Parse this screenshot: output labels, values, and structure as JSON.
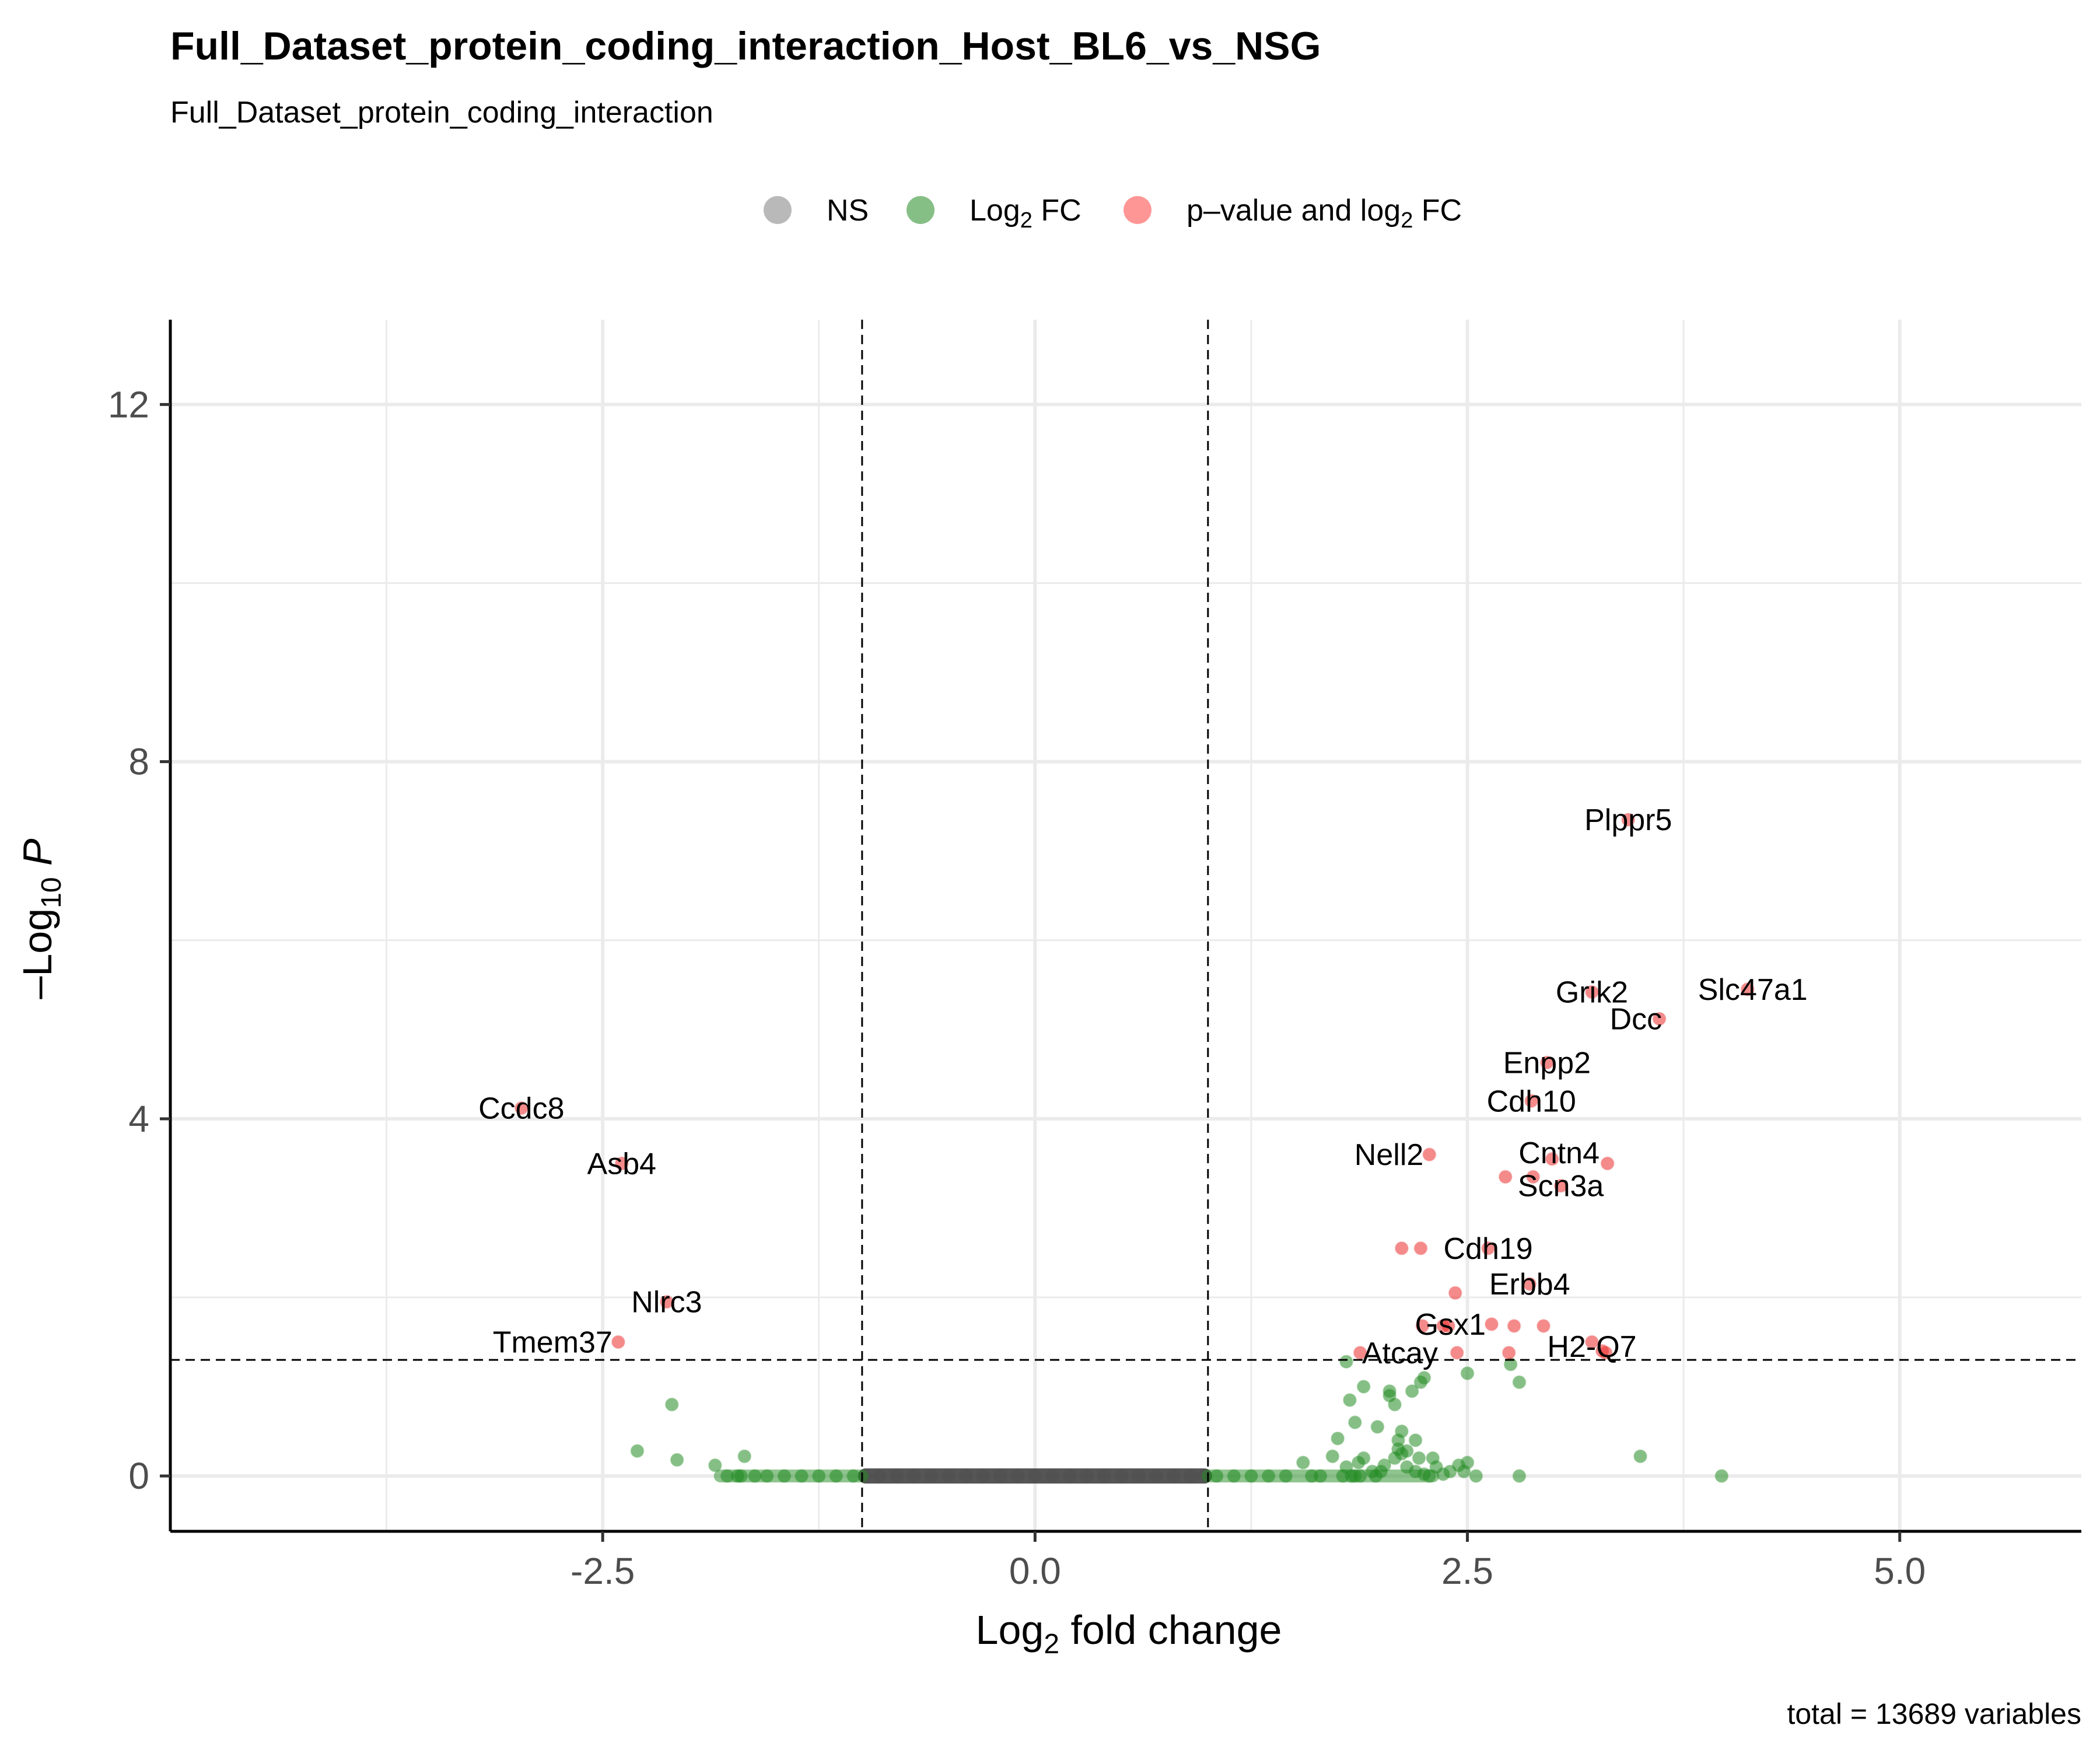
{
  "chart_data": {
    "type": "scatter",
    "title": "Full_Dataset_protein_coding_interaction_Host_BL6_vs_NSG",
    "subtitle": "Full_Dataset_protein_coding_interaction",
    "xlabel": {
      "main": "Log",
      "sub": "2",
      "rest": " fold change"
    },
    "ylabel": {
      "main": "–Log",
      "sub": "10",
      "rest": " P"
    },
    "xlim": [
      -5.0,
      6.05
    ],
    "ylim": [
      -0.62,
      12.95
    ],
    "x_ticks": [
      -2.5,
      0.0,
      2.5,
      5.0
    ],
    "x_tick_labels": [
      "-2.5",
      "0.0",
      "2.5",
      "5.0"
    ],
    "y_ticks": [
      0,
      4,
      8,
      12
    ],
    "y_tick_labels": [
      "0",
      "4",
      "8",
      "12"
    ],
    "grid": true,
    "legend_position": "top",
    "cutoffs": {
      "fc_low": -1,
      "fc_high": 1,
      "p_line": 1.3
    },
    "caption": "total = 13689 variables",
    "legend": [
      {
        "key": "NS",
        "main": "NS",
        "sub": "",
        "rest": "",
        "color": "#808080"
      },
      {
        "key": "FC",
        "main": "Log",
        "sub": "2",
        "rest": " FC",
        "color": "#228b22"
      },
      {
        "key": "P_FC",
        "main": "p–value and log",
        "sub": "2",
        "rest": " FC",
        "color": "#ff4040"
      }
    ],
    "colors": {
      "NS": "#4d4d4d",
      "FC": "#228b22",
      "P_FC": "#ec2b2b"
    },
    "series": [
      {
        "name": "NS",
        "x": [
          -0.98,
          -0.9,
          -0.8,
          -0.7,
          -0.6,
          -0.5,
          -0.4,
          -0.3,
          -0.2,
          -0.1,
          0.0,
          0.1,
          0.2,
          0.3,
          0.4,
          0.5,
          0.6,
          0.7,
          0.8,
          0.9,
          0.98
        ],
        "y": [
          0,
          0,
          0,
          0,
          0,
          0,
          0,
          0,
          0,
          0,
          0,
          0,
          0,
          0,
          0,
          0,
          0,
          0,
          0,
          0,
          0
        ]
      },
      {
        "name": "FC",
        "x": [
          -2.3,
          -2.1,
          -2.07,
          -1.85,
          -1.78,
          -1.72,
          -1.68,
          -1.62,
          -1.55,
          -1.45,
          -1.35,
          -1.25,
          -1.15,
          -1.05,
          -1.7,
          1.05,
          1.15,
          1.25,
          1.35,
          1.45,
          1.55,
          1.6,
          1.65,
          1.72,
          1.75,
          1.78,
          1.8,
          1.82,
          1.85,
          1.87,
          1.88,
          1.9,
          1.95,
          1.98,
          2.0,
          2.02,
          2.05,
          2.08,
          2.1,
          2.12,
          2.15,
          2.18,
          2.2,
          2.22,
          2.25,
          2.28,
          2.3,
          2.32,
          2.36,
          2.4,
          2.45,
          2.48,
          2.5,
          2.55,
          2.75,
          2.8,
          1.8,
          1.83,
          1.85,
          1.9,
          1.97,
          2.05,
          2.08,
          2.1,
          2.12,
          2.15,
          2.2,
          2.23,
          2.25,
          2.5,
          2.8,
          3.5,
          3.97
        ],
        "y": [
          0.28,
          0.8,
          0.18,
          0.12,
          0,
          0,
          0.22,
          0,
          0,
          0,
          0,
          0,
          0,
          0,
          0,
          0,
          0,
          0,
          0,
          0,
          0.15,
          0,
          0,
          0.22,
          0.42,
          0,
          0.1,
          0.85,
          0.6,
          0.15,
          0,
          0.2,
          0.05,
          0.55,
          0.05,
          0.12,
          0.95,
          0.2,
          0.4,
          0.25,
          0.28,
          0.95,
          0.05,
          0.2,
          0.02,
          0,
          0.2,
          0.1,
          0.02,
          0.05,
          0.12,
          0.05,
          0.15,
          0,
          1.25,
          1.05,
          1.28,
          0.0,
          0.0,
          1.0,
          0.0,
          0.9,
          0.8,
          0.3,
          0.5,
          0.1,
          0.4,
          1.05,
          1.1,
          1.15,
          0.0,
          0.22,
          0.0
        ]
      },
      {
        "name": "p-value and log2 FC",
        "x": [
          3.43,
          4.12,
          3.22,
          3.61,
          2.96,
          2.87,
          -2.97,
          -2.39,
          2.28,
          2.99,
          3.31,
          2.72,
          2.88,
          3.04,
          2.62,
          2.12,
          2.23,
          2.86,
          2.43,
          2.64,
          2.36,
          2.94,
          2.24,
          2.39,
          2.77,
          3.22,
          3.28,
          1.88,
          2.44,
          2.74,
          3.3,
          -2.13,
          -2.41
        ],
        "y": [
          7.35,
          5.45,
          5.42,
          5.12,
          4.63,
          4.2,
          4.12,
          3.5,
          3.6,
          3.55,
          3.5,
          3.35,
          3.35,
          3.25,
          2.55,
          2.55,
          2.55,
          2.15,
          2.05,
          1.7,
          1.68,
          1.68,
          1.68,
          1.68,
          1.68,
          1.5,
          1.4,
          1.38,
          1.38,
          1.38,
          1.38,
          1.95,
          1.5
        ]
      }
    ],
    "labels": [
      {
        "text": "Plppr5",
        "x": 3.43,
        "y": 7.35,
        "align": "center",
        "dy": 0
      },
      {
        "text": "Grik2",
        "x": 3.22,
        "y": 5.42,
        "align": "center",
        "dy": 0
      },
      {
        "text": "Slc47a1",
        "x": 4.12,
        "y": 5.45,
        "align": "right",
        "dy": 0
      },
      {
        "text": "Dcc",
        "x": 3.61,
        "y": 5.12,
        "align": "right",
        "dy": 0
      },
      {
        "text": "Enpp2",
        "x": 2.96,
        "y": 4.63,
        "align": "center",
        "dy": 0
      },
      {
        "text": "Cdh10",
        "x": 2.87,
        "y": 4.2,
        "align": "center",
        "dy": 0
      },
      {
        "text": "Ccdc8",
        "x": -2.97,
        "y": 4.12,
        "align": "center",
        "dy": 0
      },
      {
        "text": "Asb4",
        "x": -2.39,
        "y": 3.5,
        "align": "center",
        "dy": 0
      },
      {
        "text": "Nell2",
        "x": 2.28,
        "y": 3.6,
        "align": "left",
        "dy": 0
      },
      {
        "text": "Cntn4",
        "x": 3.03,
        "y": 3.62,
        "align": "center",
        "dy": 0
      },
      {
        "text": "Scn3a",
        "x": 3.04,
        "y": 3.25,
        "align": "center",
        "dy": 0
      },
      {
        "text": "Cdh19",
        "x": 2.62,
        "y": 2.55,
        "align": "center",
        "dy": 0
      },
      {
        "text": "Erbb4",
        "x": 2.86,
        "y": 2.15,
        "align": "center",
        "dy": 0
      },
      {
        "text": "Nlrc3",
        "x": -2.13,
        "y": 1.95,
        "align": "center",
        "dy": 0
      },
      {
        "text": "Gsx1",
        "x": 2.64,
        "y": 1.7,
        "align": "left",
        "dy": 0
      },
      {
        "text": "Tmem37",
        "x": -2.41,
        "y": 1.5,
        "align": "left",
        "dy": 0
      },
      {
        "text": "H2-Q7",
        "x": 3.22,
        "y": 1.45,
        "align": "center",
        "dy": 0
      },
      {
        "text": "Atcay",
        "x": 2.11,
        "y": 1.38,
        "align": "center",
        "dy": 0
      }
    ]
  }
}
